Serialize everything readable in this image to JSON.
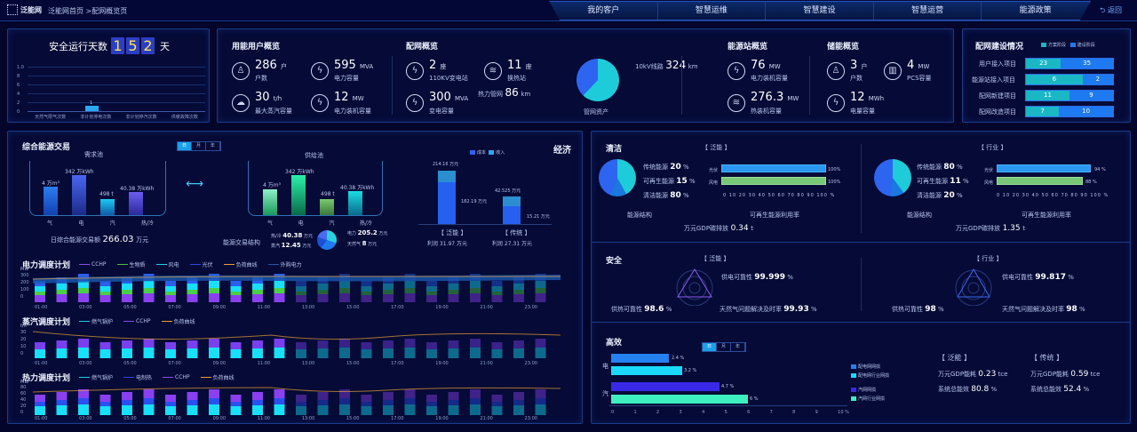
{
  "header": {
    "logo_text": "泛能网",
    "breadcrumb": "泛能网首页 >配网概览页",
    "nav": [
      "我的客户",
      "智慧运维",
      "智慧建设",
      "智慧运营",
      "能源政策"
    ],
    "back_label": "返回"
  },
  "safety": {
    "title": "安全运行天数",
    "digits": [
      "1",
      "5",
      "2"
    ],
    "unit": "天"
  },
  "chart_data": [
    {
      "type": "bar",
      "title": "安全运行天数",
      "categories": [
        "天然气限气次数",
        "非计划停电次数",
        "非计划停汽次数",
        "供暖故障次数"
      ],
      "values": [
        0,
        1,
        0,
        0
      ],
      "yticks": [
        "1.0",
        "8",
        "6",
        "4",
        "2",
        "0"
      ]
    },
    {
      "type": "bar",
      "title": "需求池",
      "categories": [
        "气",
        "电",
        "汽",
        "热/冷"
      ],
      "values": [
        4,
        342,
        498,
        40.38
      ],
      "labels": [
        "4 万m³",
        "342 万kWh",
        "498 t",
        "40.38 万kWh"
      ]
    },
    {
      "type": "bar",
      "title": "供给池",
      "categories": [
        "气",
        "电",
        "汽",
        "热/冷"
      ],
      "values": [
        4,
        342,
        498,
        40.38
      ],
      "labels": [
        "4 万m³",
        "342 万kWh",
        "498 t",
        "40.38 万kWh"
      ]
    },
    {
      "type": "bar",
      "title": "经济",
      "categories": [
        "泛能",
        "传统"
      ],
      "series": [
        {
          "name": "成本",
          "values": [
            182.19,
            15.21
          ]
        },
        {
          "name": "收入",
          "values": [
            214.16,
            42.525
          ]
        }
      ]
    },
    {
      "type": "bar",
      "title": "高效",
      "categories": [
        "电",
        "汽"
      ],
      "series": [
        {
          "name": "配电网网损",
          "values": [
            2.4
          ]
        },
        {
          "name": "配电网行业网损",
          "values": [
            3.2
          ]
        },
        {
          "name": "汽网网损",
          "values": [
            4.7
          ]
        },
        {
          "name": "汽网行业网损",
          "values": [
            6
          ]
        }
      ],
      "xticks": [
        "0",
        "1",
        "2",
        "3",
        "4",
        "5",
        "6",
        "7",
        "8",
        "9",
        "10 %"
      ]
    }
  ],
  "user_overview": {
    "title": "用能用户概览",
    "items": [
      {
        "value": "286",
        "unit": "户",
        "label": "户数",
        "icon": "user-icon"
      },
      {
        "value": "595",
        "unit": "MVA",
        "label": "电力容量",
        "icon": "bolt-icon"
      },
      {
        "value": "30",
        "unit": "t/h",
        "label": "最大蒸汽容量",
        "icon": "steam-icon"
      },
      {
        "value": "12",
        "unit": "MW",
        "label": "电力装机容量",
        "icon": "bolt-icon"
      }
    ]
  },
  "grid_overview": {
    "title": "配网概览",
    "items": [
      {
        "value": "2",
        "unit": "座",
        "label": "110KV变电站"
      },
      {
        "value": "300",
        "unit": "MVA",
        "label": "变电容量"
      },
      {
        "value": "11",
        "unit": "座",
        "label": "换热站"
      }
    ],
    "pipe_label": "热力管网",
    "pipe_value": "86",
    "pipe_unit": "km",
    "line_label": "10kV线路",
    "line_value": "324",
    "line_unit": "km",
    "pie_label": "管网资产"
  },
  "station_overview": {
    "title": "能源站概览",
    "items": [
      {
        "value": "76",
        "unit": "MW",
        "label": "电力装机容量"
      },
      {
        "value": "276.3",
        "unit": "MW",
        "label": "热装机容量"
      }
    ]
  },
  "storage_overview": {
    "title": "储能概览",
    "items": [
      {
        "value": "3",
        "unit": "户",
        "label": "户数"
      },
      {
        "value": "4",
        "unit": "MW",
        "label": "PCS容量"
      },
      {
        "value": "12",
        "unit": "MWh",
        "label": "电量容量"
      }
    ]
  },
  "construction": {
    "title": "配网建设情况",
    "legend": [
      "方案阶段",
      "建设阶段"
    ],
    "rows": [
      {
        "label": "用户接入项目",
        "a": "23",
        "b": "35"
      },
      {
        "label": "能源站接入项目",
        "a": "6",
        "b": "2"
      },
      {
        "label": "配网新建项目",
        "a": "11",
        "b": "9"
      },
      {
        "label": "配网改造项目",
        "a": "7",
        "b": "10"
      }
    ]
  },
  "trade": {
    "title": "综合能源交易",
    "tabs": [
      "日",
      "月",
      "年"
    ],
    "demand_title": "需求池",
    "supply_title": "供给池",
    "cats": [
      "气",
      "电",
      "汽",
      "热/冷"
    ],
    "demand_labels": [
      "4 万m³",
      "342 万kWh",
      "498 t",
      "40.38 万kWh"
    ],
    "supply_labels": [
      "4 万m³",
      "342 万kWh",
      "498 t",
      "40.38 万kWh"
    ],
    "daily_label": "日综合能源交易额",
    "daily_value": "266.03",
    "daily_unit": "万元",
    "structure_label": "能源交易结构",
    "structure": [
      {
        "k": "热/冷",
        "v": "40.38",
        "u": "万元"
      },
      {
        "k": "蒸汽",
        "v": "12.45",
        "u": "万元"
      },
      {
        "k": "电力",
        "v": "205.2",
        "u": "万元"
      },
      {
        "k": "天然气",
        "v": "8",
        "u": "万元"
      }
    ]
  },
  "economy": {
    "title": "经济",
    "legend": [
      "成本",
      "收入"
    ],
    "fn_top": "214.16 万元",
    "fn_cost": "182.19 万元",
    "tr_top": "42.525 万元",
    "tr_cost": "15.21 万元",
    "fn_label": "【 泛能 】",
    "tr_label": "【 传统 】",
    "fn_profit": "利润 31.97 万元",
    "tr_profit": "利润 27.31 万元"
  },
  "power_plan": {
    "title": "电力调度计划",
    "legend": [
      "CCHP",
      "生物质",
      "风电",
      "光伏",
      "负荷曲线",
      "外购电力"
    ],
    "unit": "MW",
    "yticks": [
      "300",
      "200",
      "100",
      "0"
    ],
    "xticks": [
      "01:00",
      "03:00",
      "05:00",
      "07:00",
      "09:00",
      "11:00",
      "13:00",
      "15:00",
      "17:00",
      "19:00",
      "21:00",
      "23:00"
    ]
  },
  "steam_plan": {
    "title": "蒸汽调度计划",
    "legend": [
      "燃气锅炉",
      "CCHP",
      "负荷曲线"
    ],
    "unit": "t/h",
    "yticks": [
      "30",
      "20",
      "10",
      "0"
    ],
    "xticks": [
      "01:00",
      "03:00",
      "05:00",
      "07:00",
      "09:00",
      "11:00",
      "13:00",
      "15:00",
      "17:00",
      "19:00",
      "21:00",
      "23:00"
    ]
  },
  "heat_plan": {
    "title": "热力调度计划",
    "legend": [
      "燃气锅炉",
      "电制热",
      "CCHP",
      "负荷曲线"
    ],
    "unit": "MW",
    "yticks": [
      "80",
      "60",
      "40",
      "20",
      "0"
    ],
    "xticks": [
      "01:00",
      "03:00",
      "05:00",
      "07:00",
      "09:00",
      "11:00",
      "13:00",
      "15:00",
      "17:00",
      "19:00",
      "21:00",
      "23:00"
    ]
  },
  "clean": {
    "title": "清洁",
    "left": {
      "tag": "【 泛能 】",
      "pie": [
        {
          "k": "传统能源",
          "v": "20",
          "u": "%"
        },
        {
          "k": "可再生能源",
          "v": "15",
          "u": "%"
        },
        {
          "k": "清洁能源",
          "v": "80",
          "u": "%"
        }
      ],
      "bars": [
        {
          "k": "光伏",
          "v": "100%"
        },
        {
          "k": "风电",
          "v": "100%"
        }
      ],
      "pie_caption": "能源结构",
      "bar_caption": "可再生能源利用率",
      "gdp_label": "万元GDP碳排放",
      "gdp_value": "0.34",
      "gdp_unit": "t"
    },
    "right": {
      "tag": "【 行业 】",
      "pie": [
        {
          "k": "传统能源",
          "v": "80",
          "u": "%"
        },
        {
          "k": "可再生能源",
          "v": "11",
          "u": "%"
        },
        {
          "k": "清洁能源",
          "v": "20",
          "u": "%"
        }
      ],
      "bars": [
        {
          "k": "光伏",
          "v": "94 %"
        },
        {
          "k": "风电",
          "v": "88 %"
        }
      ],
      "pie_caption": "能源结构",
      "bar_caption": "可再生能源利用率",
      "gdp_label": "万元GDP碳排放",
      "gdp_value": "1.35",
      "gdp_unit": "t"
    },
    "xticks": "0 10 20 30 40 50 60 70 80 90 100 %"
  },
  "safe": {
    "title": "安全",
    "left": {
      "tag": "【 泛能 】",
      "a_label": "供电可靠性",
      "a": "99.999",
      "b_label": "供热可靠性",
      "b": "98.6",
      "c_label": "天然气问题解决及时率",
      "c": "99.93",
      "u": "%"
    },
    "right": {
      "tag": "【 行业 】",
      "a_label": "供电可靠性",
      "a": "99.817",
      "b_label": "供热可靠性",
      "b": "98",
      "c_label": "天然气问题解决及时率",
      "c": "98",
      "u": "%"
    }
  },
  "efficient": {
    "title": "高效",
    "tabs": [
      "日",
      "月",
      "年"
    ],
    "cats": [
      "电",
      "汽"
    ],
    "bar_labels": [
      "2.4 %",
      "3.2 %",
      "4.7 %",
      "6 %"
    ],
    "legend": [
      "配电网网损",
      "配电网行业网损",
      "汽网网损",
      "汽网行业网损"
    ],
    "fn_tag": "【 泛能 】",
    "tr_tag": "【 传统 】",
    "gdp_label": "万元GDP能耗",
    "fn_gdp": "0.23",
    "tr_gdp": "0.59",
    "gdp_unit": "tce",
    "eff_label": "系统总能效",
    "fn_eff": "80.8",
    "tr_eff": "52.4",
    "eff_unit": "%"
  }
}
